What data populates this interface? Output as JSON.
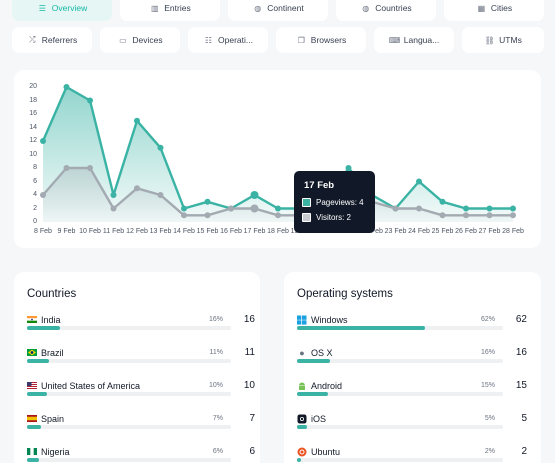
{
  "tabs_row1": [
    {
      "label": "Overview",
      "icon": "list-icon",
      "active": true
    },
    {
      "label": "Entries",
      "icon": "bar-chart-icon",
      "active": false
    },
    {
      "label": "Continent",
      "icon": "globe-icon",
      "active": false
    },
    {
      "label": "Countries",
      "icon": "globe-icon",
      "active": false
    },
    {
      "label": "Cities",
      "icon": "building-icon",
      "active": false
    }
  ],
  "tabs_row2": [
    {
      "label": "Referrers",
      "icon": "shuffle-icon"
    },
    {
      "label": "Devices",
      "icon": "laptop-icon"
    },
    {
      "label": "Operati...",
      "icon": "server-icon"
    },
    {
      "label": "Browsers",
      "icon": "browser-icon"
    },
    {
      "label": "Langua...",
      "icon": "keyboard-icon"
    },
    {
      "label": "UTMs",
      "icon": "link-icon"
    }
  ],
  "chart_data": {
    "type": "area",
    "categories": [
      "8 Feb",
      "9 Feb",
      "10 Feb",
      "11 Feb",
      "12 Feb",
      "13 Feb",
      "14 Feb",
      "15 Feb",
      "16 Feb",
      "17 Feb",
      "18 Feb",
      "19 Feb",
      "20 Feb",
      "21 Feb",
      "22 Feb",
      "23 Feb",
      "24 Feb",
      "25 Feb",
      "26 Feb",
      "27 Feb",
      "28 Feb"
    ],
    "x_tick_labels": [
      "8 Feb",
      "9 Feb",
      "10 Feb",
      "11 Feb",
      "12 Feb",
      "13 Feb",
      "14 Feb",
      "15 Feb",
      "16 Feb",
      "17 Feb",
      "18 Feb",
      "19 Feb",
      "20 Feb",
      "21 Feb",
      "22 Feb",
      "23 Feb",
      "24 Feb",
      "25 Feb",
      "26 Feb",
      "27 Feb",
      "28 Feb"
    ],
    "y_ticks": [
      0,
      2,
      4,
      6,
      8,
      10,
      12,
      14,
      16,
      18,
      20
    ],
    "ylim": [
      0,
      20
    ],
    "series": [
      {
        "name": "Pageviews",
        "values": [
          12,
          20,
          18,
          4,
          15,
          11,
          2,
          3,
          2,
          4,
          2,
          2,
          2,
          8,
          4,
          2,
          6,
          3,
          2,
          2,
          2
        ],
        "color": "#3ab3a5"
      },
      {
        "name": "Visitors",
        "values": [
          4,
          8,
          8,
          2,
          5,
          4,
          1,
          1,
          2,
          2,
          1,
          1,
          2,
          3,
          3,
          2,
          2,
          1,
          1,
          1,
          1
        ],
        "color": "#a3aab2"
      }
    ],
    "grid": false
  },
  "tooltip": {
    "title": "17 Feb",
    "rows": [
      {
        "label": "Pageviews: 4",
        "color": "#3ab3a5"
      },
      {
        "label": "Visitors: 2",
        "color": "#c7cbd1"
      }
    ]
  },
  "countries": {
    "title": "Countries",
    "rows": [
      {
        "label": "India",
        "pct": "16%",
        "value": "16",
        "fill": 0.16,
        "flag": "india-flag-icon"
      },
      {
        "label": "Brazil",
        "pct": "11%",
        "value": "11",
        "fill": 0.11,
        "flag": "brazil-flag-icon"
      },
      {
        "label": "United States of America",
        "pct": "10%",
        "value": "10",
        "fill": 0.1,
        "flag": "usa-flag-icon"
      },
      {
        "label": "Spain",
        "pct": "7%",
        "value": "7",
        "fill": 0.07,
        "flag": "spain-flag-icon"
      },
      {
        "label": "Nigeria",
        "pct": "6%",
        "value": "6",
        "fill": 0.06,
        "flag": "nigeria-flag-icon"
      }
    ]
  },
  "os": {
    "title": "Operating systems",
    "rows": [
      {
        "label": "Windows",
        "pct": "62%",
        "value": "62",
        "fill": 0.62,
        "icon": "windows-icon"
      },
      {
        "label": "OS X",
        "pct": "16%",
        "value": "16",
        "fill": 0.16,
        "icon": "apple-icon"
      },
      {
        "label": "Android",
        "pct": "15%",
        "value": "15",
        "fill": 0.15,
        "icon": "android-icon"
      },
      {
        "label": "iOS",
        "pct": "5%",
        "value": "5",
        "fill": 0.05,
        "icon": "ios-icon"
      },
      {
        "label": "Ubuntu",
        "pct": "2%",
        "value": "2",
        "fill": 0.02,
        "icon": "ubuntu-icon"
      }
    ]
  },
  "colors": {
    "accent": "#14b8a6",
    "bar": "#3ab3a5",
    "tooltip_bg": "#111827"
  }
}
